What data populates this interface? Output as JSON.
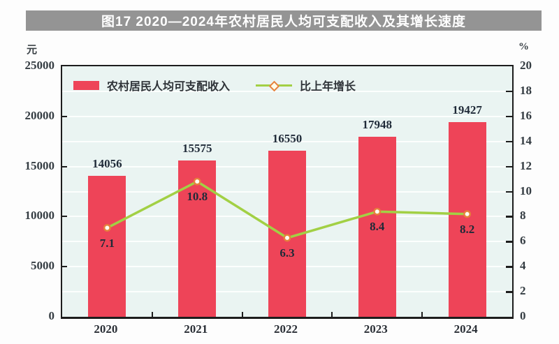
{
  "title": "图17 2020—2024年农村居民人均可支配收入及其增长速度",
  "colors": {
    "title_bar_bg": "#949494",
    "title_text": "#ffffff",
    "bar": "#ee4458",
    "line": "#a2d044",
    "marker_ring": "#e5813c",
    "marker_fill": "#fffdf2",
    "plot_bg": "#eaf4f2",
    "axis_frame": "#1d1d1d",
    "gridline": "#ffffff"
  },
  "legend": {
    "bar_label": "农村居民人均可支配收入",
    "line_label": "比上年增长"
  },
  "chart_data": {
    "type": "bar",
    "categories": [
      "2020",
      "2021",
      "2022",
      "2023",
      "2024"
    ],
    "series": [
      {
        "name": "农村居民人均可支配收入",
        "type": "bar",
        "axis": "left",
        "values": [
          14056,
          15575,
          16550,
          17948,
          19427
        ],
        "color": "#ee4458"
      },
      {
        "name": "比上年增长",
        "type": "line",
        "axis": "right",
        "values": [
          7.1,
          10.8,
          6.3,
          8.4,
          8.2
        ],
        "color": "#a2d044",
        "marker_color": "#e5813c"
      }
    ],
    "left_axis": {
      "unit": "元",
      "min": 0,
      "max": 25000,
      "ticks": [
        0,
        5000,
        10000,
        15000,
        20000,
        25000
      ]
    },
    "right_axis": {
      "unit": "%",
      "min": 0,
      "max": 20,
      "ticks": [
        0,
        2,
        4,
        6,
        8,
        10,
        12,
        14,
        16,
        18,
        20
      ]
    },
    "grid": "on",
    "legend_position": "top-left-inside",
    "title": "图17 2020—2024年农村居民人均可支配收入及其增长速度",
    "xlabel": "",
    "ylabel_left": "元",
    "ylabel_right": "%"
  }
}
